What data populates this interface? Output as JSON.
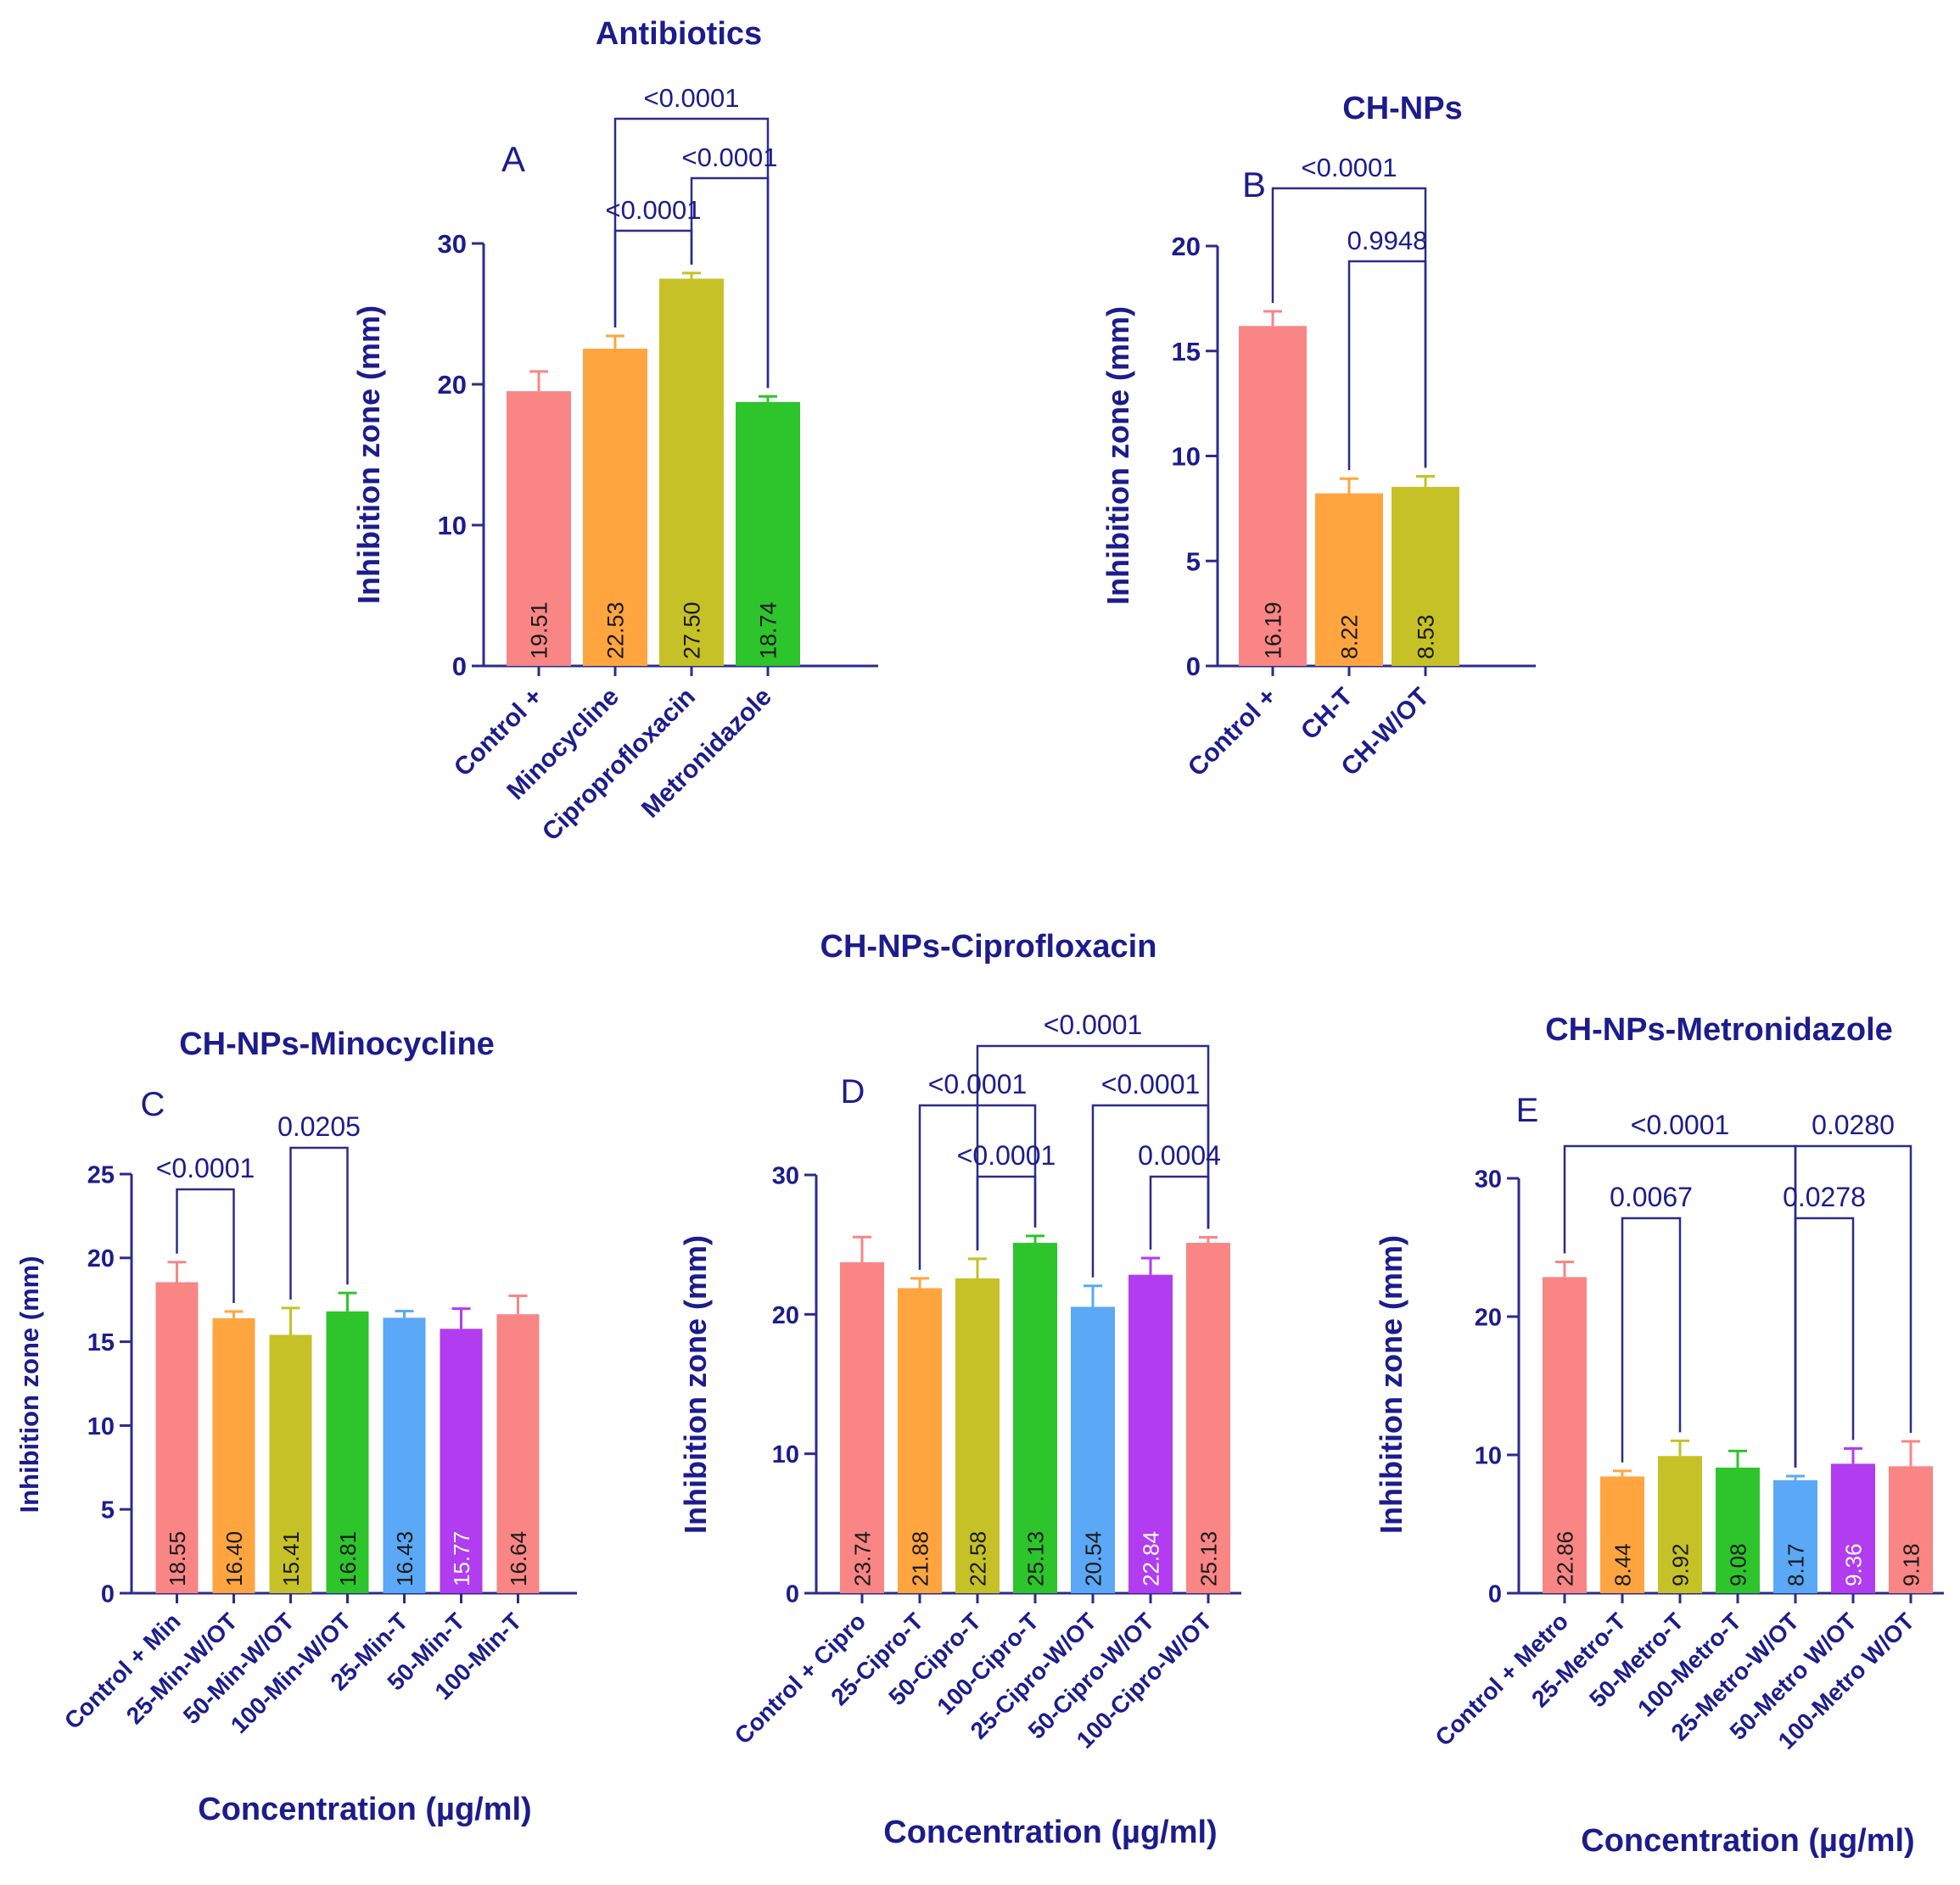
{
  "colors": {
    "axis": "#2b2b8c",
    "text": "#1c1c8c",
    "palette": [
      "#f98584",
      "#ffa53f",
      "#c6c126",
      "#2dc42c",
      "#5aa8f6",
      "#b13cf0"
    ]
  },
  "chart_data": [
    {
      "id": "A",
      "type": "bar",
      "panel_letter": "A",
      "title": "Antibiotics",
      "xlabel": "",
      "ylabel": "Inhibition zone (mm)",
      "ylim": [
        0,
        30
      ],
      "yticks": [
        0,
        10,
        20,
        30
      ],
      "categories": [
        "Control +",
        "Minocycline",
        "Ciproprofloxacin",
        "Metronidazole"
      ],
      "values": [
        19.51,
        22.53,
        27.5,
        18.74
      ],
      "errors": [
        1.4,
        0.9,
        0.4,
        0.4
      ],
      "value_labels": [
        "19.51",
        "22.53",
        "27.50",
        "18.74"
      ],
      "comparisons": [
        {
          "from": 1,
          "to": 3,
          "label": "<0.0001"
        },
        {
          "from": 2,
          "to": 3,
          "label": "<0.0001"
        },
        {
          "from": 1,
          "to": 2,
          "label": "<0.0001"
        }
      ]
    },
    {
      "id": "B",
      "type": "bar",
      "panel_letter": "B",
      "title": "CH-NPs",
      "xlabel": "",
      "ylabel": "Inhibition zone (mm)",
      "ylim": [
        0,
        20
      ],
      "yticks": [
        0,
        5,
        10,
        15,
        20
      ],
      "categories": [
        "Control +",
        "CH-T",
        "CH-W/OT"
      ],
      "values": [
        16.19,
        8.22,
        8.53
      ],
      "errors": [
        0.7,
        0.7,
        0.5
      ],
      "value_labels": [
        "16.19",
        "8.22",
        "8.53"
      ],
      "comparisons": [
        {
          "from": 0,
          "to": 2,
          "label": "<0.0001"
        },
        {
          "from": 1,
          "to": 2,
          "label": "0.9948"
        }
      ]
    },
    {
      "id": "C",
      "type": "bar",
      "panel_letter": "C",
      "title": "CH-NPs-Minocycline",
      "xlabel": "Concentration (µg/ml)",
      "ylabel": "Inhibition zone (mm)",
      "ylim": [
        0,
        25
      ],
      "yticks": [
        0,
        5,
        10,
        15,
        20,
        25
      ],
      "categories": [
        "Control + Min",
        "25-Min-W/OT",
        "50-Min-W/OT",
        "100-Min-W/OT",
        "25-Min-T",
        "50-Min-T",
        "100-Min-T"
      ],
      "values": [
        18.55,
        16.4,
        15.41,
        16.81,
        16.43,
        15.77,
        16.64
      ],
      "errors": [
        1.2,
        0.4,
        1.6,
        1.1,
        0.4,
        1.2,
        1.1
      ],
      "value_labels": [
        "18.55",
        "16.40",
        "15.41",
        "16.81",
        "16.43",
        "15.77",
        "16.64"
      ],
      "comparisons": [
        {
          "from": 0,
          "to": 1,
          "label": "<0.0001"
        },
        {
          "from": 2,
          "to": 3,
          "label": "0.0205"
        }
      ]
    },
    {
      "id": "D",
      "type": "bar",
      "panel_letter": "D",
      "title": "CH-NPs-Ciprofloxacin",
      "xlabel": "Concentration (µg/ml)",
      "ylabel": "Inhibition zone (mm)",
      "ylim": [
        0,
        30
      ],
      "yticks": [
        0,
        10,
        20,
        30
      ],
      "categories": [
        "Control + Cipro",
        "25-Cipro-T",
        "50-Cipro-T",
        "100-Cipro-T",
        "25-Cipro-W/OT",
        "50-Cipro-W/OT",
        "100-Cipro-W/OT"
      ],
      "values": [
        23.74,
        21.88,
        22.58,
        25.13,
        20.54,
        22.84,
        25.13
      ],
      "errors": [
        1.8,
        0.7,
        1.4,
        0.5,
        1.5,
        1.2,
        0.4
      ],
      "value_labels": [
        "23.74",
        "21.88",
        "22.58",
        "25.13",
        "20.54",
        "22.84",
        "25.13"
      ],
      "comparisons": [
        {
          "from": 2,
          "to": 6,
          "label": "<0.0001"
        },
        {
          "from": 1,
          "to": 3,
          "label": "<0.0001"
        },
        {
          "from": 4,
          "to": 6,
          "label": "<0.0001"
        },
        {
          "from": 2,
          "to": 3,
          "label": "<0.0001"
        },
        {
          "from": 5,
          "to": 6,
          "label": "0.0004"
        }
      ]
    },
    {
      "id": "E",
      "type": "bar",
      "panel_letter": "E",
      "title": "CH-NPs-Metronidazole",
      "xlabel": "Concentration (µg/ml)",
      "ylabel": "Inhibition zone (mm)",
      "ylim": [
        0,
        30
      ],
      "yticks": [
        0,
        10,
        20,
        30
      ],
      "categories": [
        "Control + Metro",
        "25-Metro-T",
        "50-Metro-T",
        "100-Metro-T",
        "25-Metro-W/OT",
        "50-Metro W/OT",
        "100-Metro W/OT"
      ],
      "values": [
        22.86,
        8.44,
        9.92,
        9.08,
        8.17,
        9.36,
        9.18
      ],
      "errors": [
        1.1,
        0.4,
        1.1,
        1.2,
        0.3,
        1.1,
        1.8
      ],
      "value_labels": [
        "22.86",
        "8.44",
        "9.92",
        "9.08",
        "8.17",
        "9.36",
        "9.18"
      ],
      "comparisons": [
        {
          "from": 0,
          "to": 4,
          "label": "<0.0001"
        },
        {
          "from": 4,
          "to": 6,
          "label": "0.0280"
        },
        {
          "from": 1,
          "to": 2,
          "label": "0.0067"
        },
        {
          "from": 4,
          "to": 5,
          "label": "0.0278"
        }
      ]
    }
  ]
}
